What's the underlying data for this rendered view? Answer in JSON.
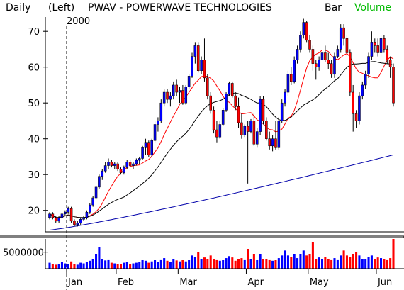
{
  "header": {
    "period": "Daily",
    "axis_side": "(Left)",
    "title": "PWAV - POWERWAVE TECHNOLOGIES",
    "chart_style": "Bar",
    "volume_label": "Volume"
  },
  "colors": {
    "up": "#0000ff",
    "down": "#ff0000",
    "ma_short": "#ff0000",
    "ma_mid": "#000000",
    "ma_long": "#0000aa",
    "volume_label": "#00bb00",
    "background": "#ffffff"
  },
  "chart_data": {
    "type": "candlestick",
    "price_axis": {
      "ticks": [
        "70",
        "60",
        "50",
        "40",
        "30",
        "20"
      ],
      "ylim": [
        14,
        74
      ]
    },
    "volume_axis": {
      "ticks": [
        "5000000"
      ],
      "ylim": [
        0,
        9000000
      ]
    },
    "year_marker": "2000",
    "months": [
      "Jan",
      "Feb",
      "Mar",
      "Apr",
      "May",
      "Jun"
    ],
    "candles": [
      [
        18,
        19.5,
        17.5,
        19
      ],
      [
        19,
        19.5,
        17.5,
        18
      ],
      [
        18,
        18.5,
        16.5,
        17
      ],
      [
        17,
        18.5,
        16.5,
        18
      ],
      [
        18,
        19.5,
        17.5,
        19
      ],
      [
        19,
        20,
        18.5,
        19.5
      ],
      [
        19.5,
        21,
        19,
        20.5
      ],
      [
        20.5,
        21,
        16.5,
        17
      ],
      [
        17,
        17.5,
        15.5,
        16
      ],
      [
        16,
        17,
        15.5,
        16.5
      ],
      [
        16.5,
        18,
        16,
        17.5
      ],
      [
        17.5,
        18.5,
        17,
        18
      ],
      [
        18,
        20,
        17.5,
        19.5
      ],
      [
        19.5,
        22,
        19,
        21.5
      ],
      [
        21.5,
        24,
        21,
        23.5
      ],
      [
        23.5,
        27,
        23,
        26.5
      ],
      [
        26.5,
        30,
        26,
        29.5
      ],
      [
        29.5,
        31.5,
        28.5,
        31
      ],
      [
        31,
        33.5,
        30.5,
        32.5
      ],
      [
        32.5,
        34.5,
        31.5,
        33.5
      ],
      [
        33.5,
        34,
        32,
        32.5
      ],
      [
        32.5,
        33.5,
        31.5,
        33
      ],
      [
        33,
        33.5,
        31,
        31.5
      ],
      [
        31.5,
        32,
        30,
        30.5
      ],
      [
        30.5,
        32.5,
        30,
        32
      ],
      [
        32,
        34,
        31.5,
        33.5
      ],
      [
        33.5,
        34,
        32,
        32.5
      ],
      [
        32.5,
        33.5,
        31.5,
        33
      ],
      [
        33,
        34.5,
        32.5,
        34
      ],
      [
        34,
        35,
        33,
        34.5
      ],
      [
        34.5,
        38,
        34,
        37.5
      ],
      [
        37.5,
        40,
        35.5,
        39
      ],
      [
        39,
        39.5,
        35,
        35.5
      ],
      [
        35.5,
        40,
        35,
        39.5
      ],
      [
        39.5,
        45,
        39,
        44
      ],
      [
        44,
        46,
        42,
        45
      ],
      [
        45,
        51,
        44.5,
        50
      ],
      [
        50,
        54,
        49,
        53
      ],
      [
        53,
        54,
        50,
        51
      ],
      [
        51,
        53,
        49,
        52
      ],
      [
        52,
        56,
        51,
        55
      ],
      [
        55,
        56.5,
        52,
        53
      ],
      [
        53,
        54.5,
        50,
        53.5
      ],
      [
        53.5,
        55,
        49.5,
        50
      ],
      [
        50,
        55,
        49.5,
        54.5
      ],
      [
        54.5,
        58,
        54,
        57.5
      ],
      [
        57.5,
        64,
        57,
        63
      ],
      [
        63,
        67,
        61,
        66
      ],
      [
        66,
        67,
        58.5,
        59
      ],
      [
        59,
        63,
        58,
        62
      ],
      [
        62,
        68,
        56,
        57
      ],
      [
        57,
        58,
        51,
        52
      ],
      [
        52,
        53,
        47,
        48
      ],
      [
        48,
        49,
        41.5,
        42.5
      ],
      [
        42.5,
        45,
        39,
        40.5
      ],
      [
        40.5,
        45,
        40,
        44
      ],
      [
        44,
        48.5,
        43.5,
        48
      ],
      [
        48,
        53,
        47.5,
        52.5
      ],
      [
        52.5,
        56,
        52,
        55.5
      ],
      [
        55.5,
        56,
        51.5,
        52
      ],
      [
        52,
        53,
        48,
        49
      ],
      [
        49,
        51.5,
        43,
        44.5
      ],
      [
        44.5,
        47,
        40,
        41
      ],
      [
        41,
        44,
        40.5,
        43.5
      ],
      [
        43.5,
        45,
        27.5,
        42
      ],
      [
        42,
        45.5,
        41.5,
        45
      ],
      [
        45,
        47,
        38,
        38.5
      ],
      [
        38.5,
        43,
        37.5,
        42
      ],
      [
        42,
        52,
        41,
        51
      ],
      [
        51,
        52,
        44,
        45
      ],
      [
        45,
        46,
        39.5,
        40
      ],
      [
        40,
        42,
        37,
        38
      ],
      [
        38,
        41,
        36.5,
        40
      ],
      [
        40,
        45,
        37,
        37.5
      ],
      [
        37.5,
        46,
        37,
        45
      ],
      [
        45,
        51,
        44.5,
        50
      ],
      [
        50,
        54,
        49,
        53
      ],
      [
        53,
        59,
        52,
        58
      ],
      [
        58,
        60,
        55,
        56
      ],
      [
        56,
        63,
        55.5,
        62
      ],
      [
        62,
        66,
        61,
        65
      ],
      [
        65,
        70,
        64,
        69
      ],
      [
        69,
        73.5,
        68,
        72.5
      ],
      [
        72.5,
        73,
        67,
        67.5
      ],
      [
        67.5,
        69,
        64,
        65
      ],
      [
        65,
        66,
        59,
        61
      ],
      [
        61,
        62,
        56.5,
        60
      ],
      [
        60,
        63,
        59,
        62
      ],
      [
        62,
        65,
        61,
        64
      ],
      [
        64,
        66,
        61.5,
        62
      ],
      [
        62,
        64,
        59.5,
        61
      ],
      [
        61,
        62,
        57,
        58
      ],
      [
        58,
        64,
        57,
        63
      ],
      [
        63,
        66,
        62.5,
        65
      ],
      [
        65,
        72,
        64,
        71
      ],
      [
        71,
        72,
        66,
        68
      ],
      [
        68,
        69,
        63,
        64
      ],
      [
        64,
        65,
        52,
        53
      ],
      [
        53,
        55,
        42,
        47
      ],
      [
        47,
        48,
        43,
        45
      ],
      [
        45,
        53,
        44,
        52
      ],
      [
        52,
        56,
        51,
        55
      ],
      [
        55,
        59,
        54,
        58
      ],
      [
        58,
        64,
        57,
        63
      ],
      [
        63,
        70,
        62,
        67
      ],
      [
        67,
        68,
        64,
        66
      ],
      [
        66,
        68,
        63,
        64
      ],
      [
        64,
        69,
        63,
        68
      ],
      [
        68,
        69,
        64,
        65
      ],
      [
        65,
        66,
        61,
        62
      ],
      [
        62,
        63,
        57,
        60
      ],
      [
        60,
        61,
        49,
        50
      ]
    ],
    "volumes": [
      1.8,
      1.5,
      1.2,
      1.3,
      2.0,
      1.6,
      1.4,
      2.2,
      1.5,
      1.2,
      1.8,
      1.6,
      2.0,
      2.4,
      3.0,
      4.5,
      6.5,
      3.0,
      2.5,
      2.8,
      1.8,
      1.6,
      1.5,
      1.4,
      1.8,
      2.0,
      1.5,
      1.6,
      1.8,
      2.0,
      2.6,
      2.4,
      1.8,
      2.2,
      2.6,
      2.0,
      2.8,
      3.2,
      2.4,
      2.0,
      3.0,
      2.5,
      2.2,
      2.6,
      2.2,
      2.6,
      4.0,
      3.6,
      5.0,
      3.0,
      3.4,
      3.0,
      4.0,
      3.0,
      2.8,
      2.4,
      2.6,
      3.2,
      3.8,
      3.4,
      2.4,
      3.0,
      3.2,
      2.8,
      6.0,
      3.0,
      4.5,
      2.6,
      4.5,
      3.0,
      3.0,
      2.8,
      2.4,
      2.6,
      3.2,
      4.0,
      5.5,
      4.0,
      3.6,
      4.5,
      3.2,
      4.5,
      5.5,
      4.0,
      4.5,
      8.0,
      3.0,
      3.4,
      3.0,
      3.6,
      3.0,
      2.8,
      3.2,
      2.8,
      4.0,
      5.5,
      4.0,
      3.6,
      4.5,
      5.0,
      4.0,
      3.0,
      3.0,
      3.6,
      4.0,
      3.0,
      3.4,
      3.2,
      3.0,
      2.8,
      3.2,
      9.0
    ]
  }
}
